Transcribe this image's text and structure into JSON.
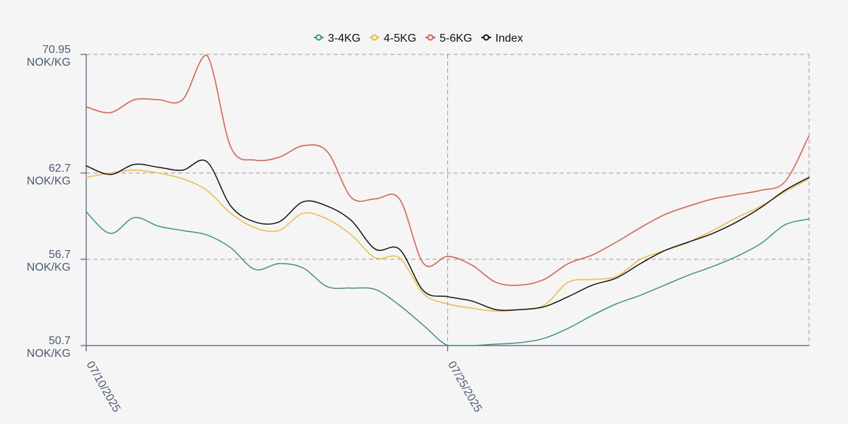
{
  "chart_data": {
    "type": "line",
    "title": "",
    "xlabel": "",
    "ylabel": "",
    "unit": "NOK/KG",
    "x": [
      "07/10/2025",
      "07/11/2025",
      "07/12/2025",
      "07/13/2025",
      "07/14/2025",
      "07/15/2025",
      "07/16/2025",
      "07/17/2025",
      "07/18/2025",
      "07/19/2025",
      "07/20/2025",
      "07/21/2025",
      "07/22/2025",
      "07/23/2025",
      "07/24/2025",
      "07/25/2025",
      "07/26/2025",
      "07/27/2025",
      "07/28/2025",
      "07/29/2025",
      "07/30/2025",
      "07/31/2025",
      "08/01/2025",
      "08/02/2025",
      "08/03/2025",
      "08/04/2025",
      "08/05/2025",
      "08/06/2025",
      "08/07/2025",
      "08/08/2025",
      "08/09/2025"
    ],
    "x_tick_labels": [
      "07/10/2025",
      "07/25/2025"
    ],
    "y_ticks": [
      50.7,
      56.7,
      62.7,
      70.95
    ],
    "y_tick_labels": [
      "50.7",
      "56.7",
      "62.7",
      "70.95"
    ],
    "ylim": [
      50.7,
      70.95
    ],
    "grid": true,
    "legend_position": "top-center",
    "series": [
      {
        "name": "3-4KG",
        "color": "#3b9580",
        "values": [
          60.0,
          58.5,
          59.6,
          59.0,
          58.7,
          58.4,
          57.5,
          56.0,
          56.4,
          56.1,
          54.8,
          54.7,
          54.6,
          53.5,
          52.1,
          50.7,
          50.7,
          50.8,
          50.9,
          51.2,
          51.9,
          52.8,
          53.6,
          54.2,
          54.9,
          55.6,
          56.2,
          56.9,
          57.8,
          59.1,
          59.5
        ]
      },
      {
        "name": "4-5KG",
        "color": "#f0bb3a",
        "values": [
          62.4,
          62.7,
          62.9,
          62.7,
          62.3,
          61.5,
          59.9,
          58.9,
          58.7,
          59.9,
          59.5,
          58.4,
          56.8,
          56.8,
          54.3,
          53.6,
          53.3,
          53.1,
          53.2,
          53.5,
          55.1,
          55.3,
          55.5,
          56.7,
          57.3,
          57.9,
          58.7,
          59.6,
          60.4,
          61.4,
          62.3
        ]
      },
      {
        "name": "5-6KG",
        "color": "#df5a45",
        "values": [
          67.3,
          66.9,
          67.8,
          67.8,
          67.8,
          70.9,
          64.5,
          63.6,
          63.8,
          64.6,
          64.2,
          61.0,
          60.9,
          60.9,
          56.4,
          56.9,
          56.3,
          55.1,
          54.9,
          55.3,
          56.4,
          57.0,
          57.9,
          58.9,
          59.8,
          60.4,
          60.9,
          61.2,
          61.5,
          62.1,
          65.3
        ]
      },
      {
        "name": "Index",
        "color": "#111111",
        "values": [
          63.2,
          62.6,
          63.3,
          63.1,
          62.9,
          63.5,
          60.4,
          59.3,
          59.3,
          60.7,
          60.4,
          59.4,
          57.4,
          57.4,
          54.5,
          54.1,
          53.8,
          53.2,
          53.2,
          53.4,
          54.1,
          54.9,
          55.4,
          56.4,
          57.3,
          57.9,
          58.5,
          59.3,
          60.3,
          61.5,
          62.4
        ]
      }
    ]
  }
}
